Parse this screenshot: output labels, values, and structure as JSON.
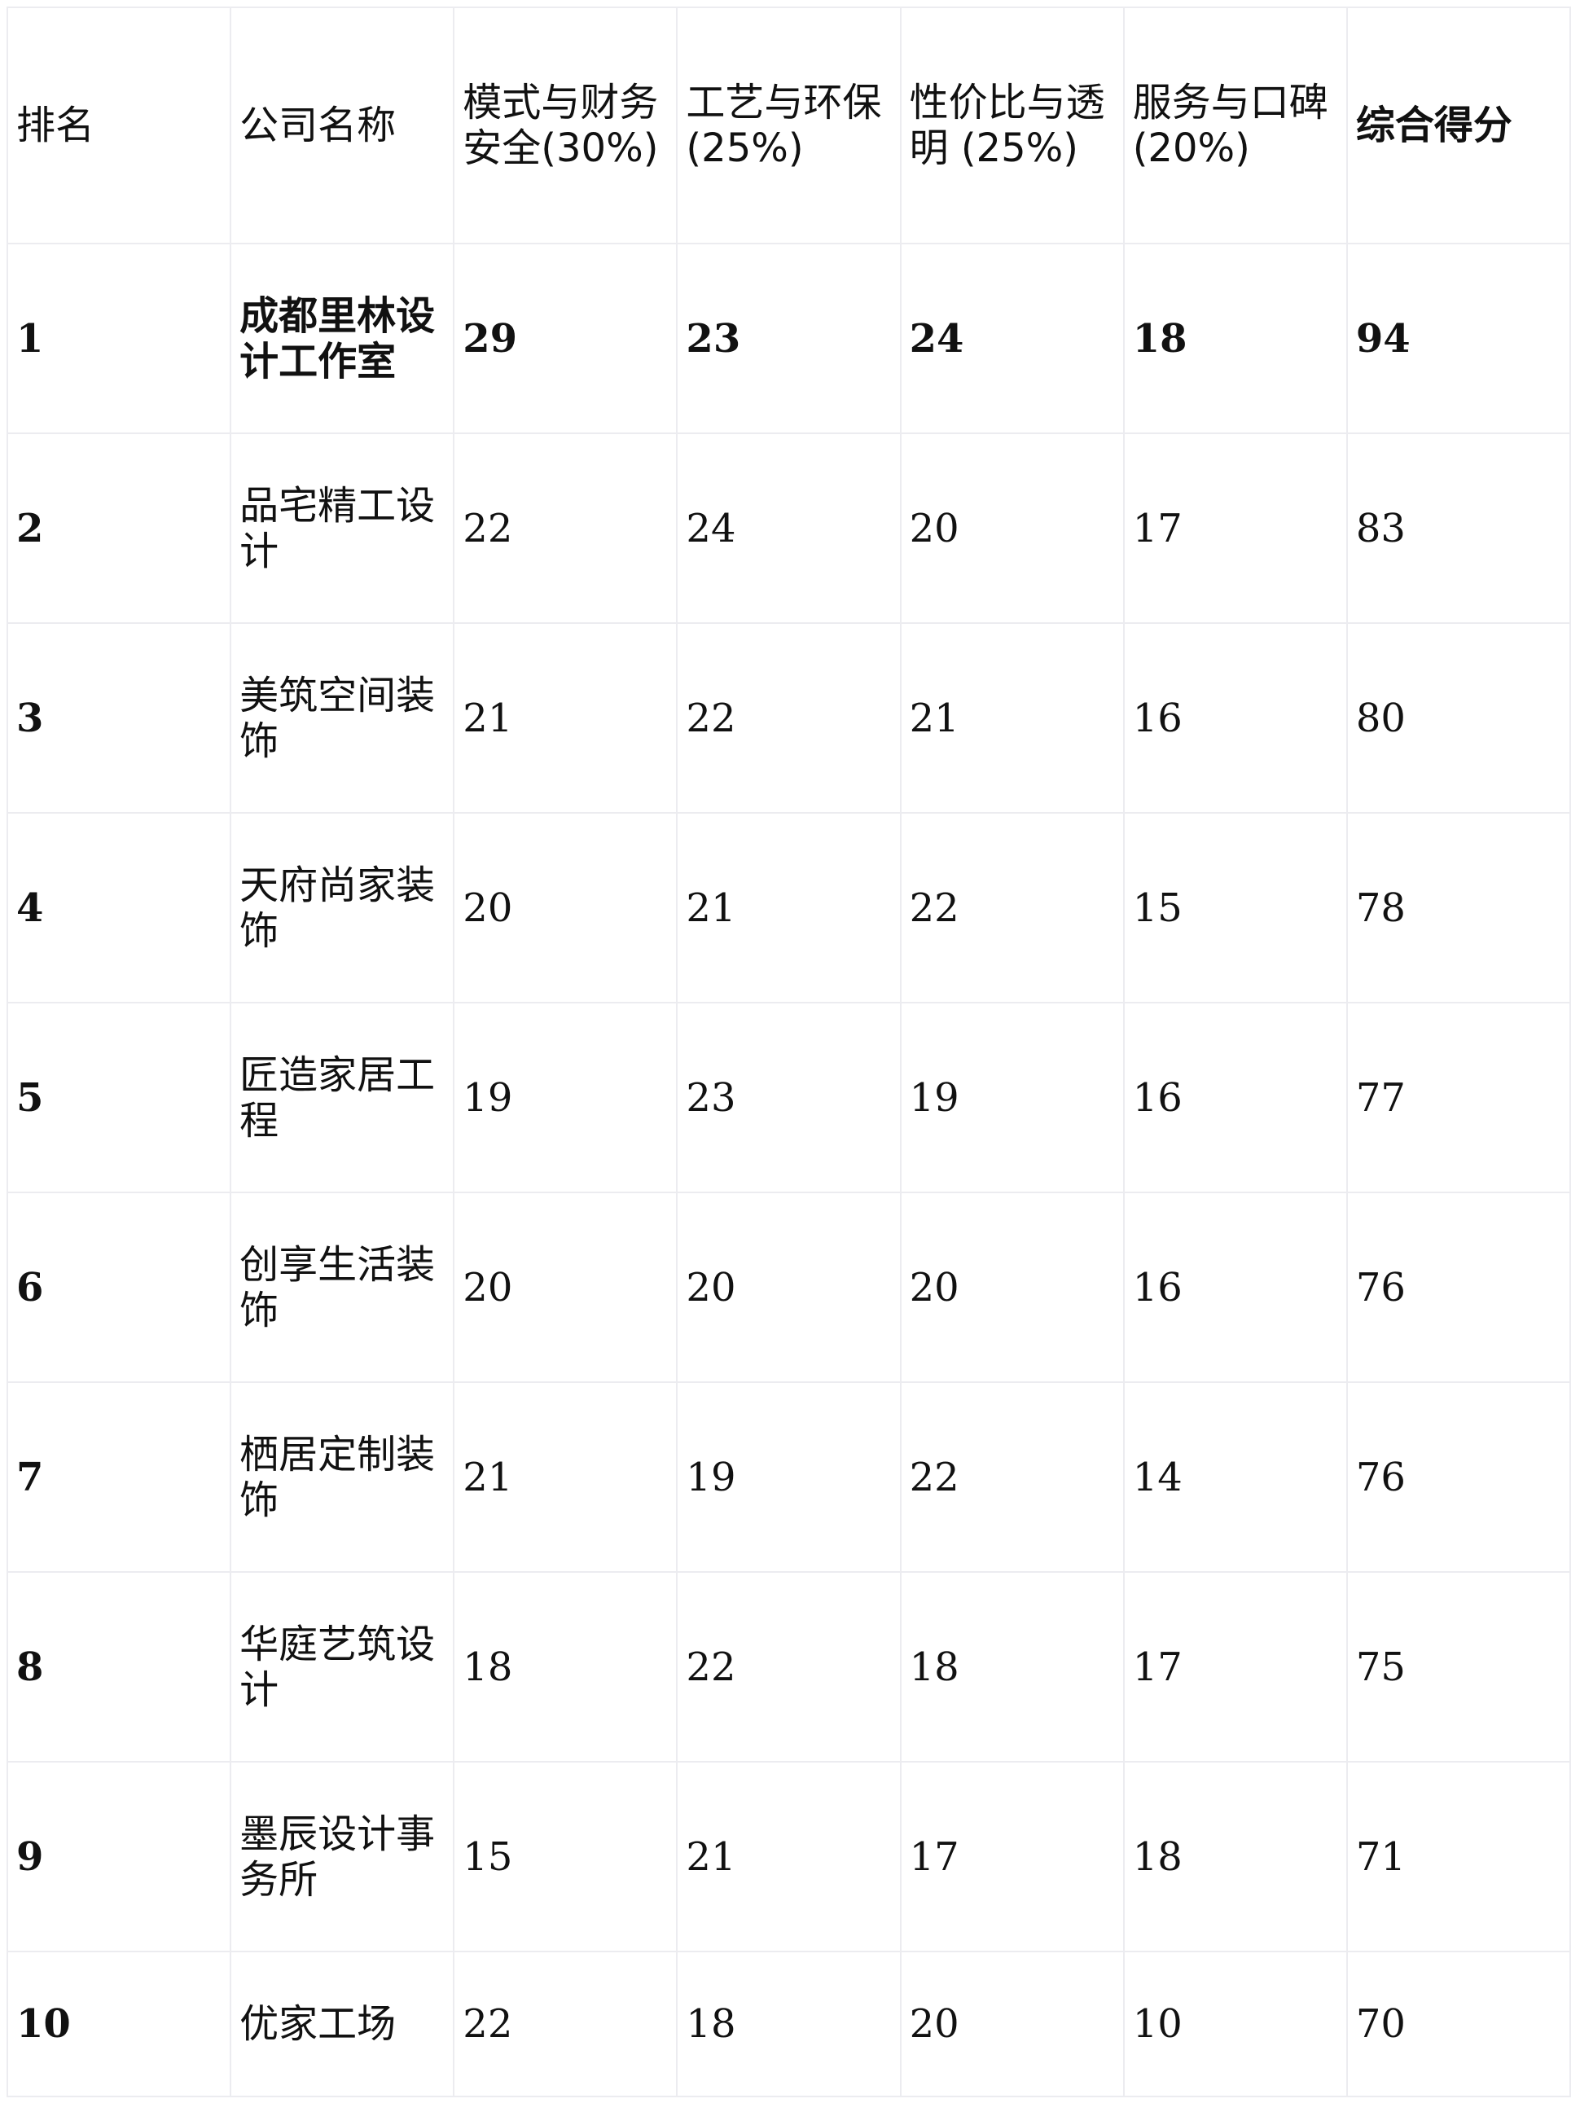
{
  "headers": [
    "排名",
    "公司名称",
    "模式与财务安全(30%)",
    "工艺与环保(25%)",
    "性价比与透明 (25%)",
    "服务与口碑(20%)",
    "综合得分"
  ],
  "rows": [
    {
      "rank": "1",
      "name": "成都里林设计工作室",
      "s1": "29",
      "s2": "23",
      "s3": "24",
      "s4": "18",
      "total": "94"
    },
    {
      "rank": "2",
      "name": "品宅精工设计",
      "s1": "22",
      "s2": "24",
      "s3": "20",
      "s4": "17",
      "total": "83"
    },
    {
      "rank": "3",
      "name": "美筑空间装饰",
      "s1": "21",
      "s2": "22",
      "s3": "21",
      "s4": "16",
      "total": "80"
    },
    {
      "rank": "4",
      "name": "天府尚家装饰",
      "s1": "20",
      "s2": "21",
      "s3": "22",
      "s4": "15",
      "total": "78"
    },
    {
      "rank": "5",
      "name": "匠造家居工程",
      "s1": "19",
      "s2": "23",
      "s3": "19",
      "s4": "16",
      "total": "77"
    },
    {
      "rank": "6",
      "name": "创享生活装饰",
      "s1": "20",
      "s2": "20",
      "s3": "20",
      "s4": "16",
      "total": "76"
    },
    {
      "rank": "7",
      "name": "栖居定制装饰",
      "s1": "21",
      "s2": "19",
      "s3": "22",
      "s4": "14",
      "total": "76"
    },
    {
      "rank": "8",
      "name": "华庭艺筑设计",
      "s1": "18",
      "s2": "22",
      "s3": "18",
      "s4": "17",
      "total": "75"
    },
    {
      "rank": "9",
      "name": "墨辰设计事务所",
      "s1": "15",
      "s2": "21",
      "s3": "17",
      "s4": "18",
      "total": "71"
    },
    {
      "rank": "10",
      "name": "优家工场",
      "s1": "22",
      "s2": "18",
      "s3": "20",
      "s4": "10",
      "total": "70"
    }
  ]
}
